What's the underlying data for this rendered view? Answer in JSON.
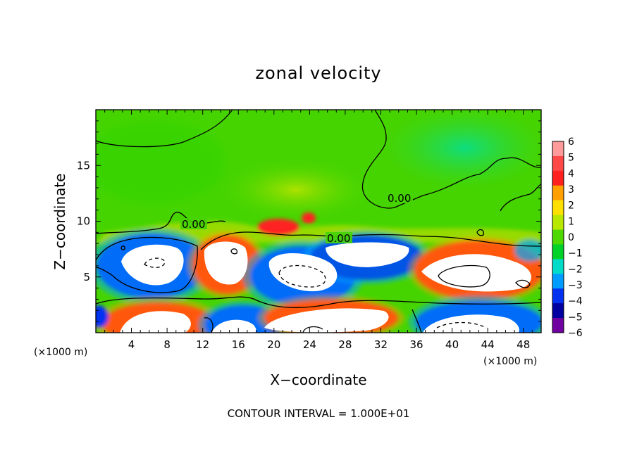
{
  "chart_data": {
    "type": "heatmap",
    "title": "zonal velocity",
    "xlabel": "X−coordinate",
    "ylabel": "Z−coordinate",
    "x_unit": "(×1000 m)",
    "y_unit": "(×1000 m)",
    "xlim": [
      0,
      50
    ],
    "ylim": [
      0,
      20
    ],
    "x_ticks": [
      "4",
      "8",
      "12",
      "16",
      "20",
      "24",
      "28",
      "32",
      "36",
      "40",
      "44",
      "48"
    ],
    "y_ticks": [
      "5",
      "10",
      "15"
    ],
    "colorbar": {
      "min": -6,
      "max": 6,
      "labels": [
        "6",
        "5",
        "4",
        "3",
        "2",
        "1",
        "0",
        "−1",
        "−2",
        "−3",
        "−4",
        "−5",
        "−6"
      ],
      "colors": [
        "#ff9a9a",
        "#ff4848",
        "#ff2020",
        "#ffa000",
        "#ffe000",
        "#b8e800",
        "#4cd800",
        "#00d22a",
        "#00dcc8",
        "#009cff",
        "#0030f0",
        "#0000a0",
        "#7000a0"
      ]
    },
    "contour_labels": [
      "0.00",
      "0.00",
      "0.00"
    ],
    "contour_interval_text": "CONTOUR INTERVAL = 1.000E+01",
    "features": [
      {
        "kind": "blob",
        "sign": "negative",
        "cx": 6.5,
        "cz": 6.0
      },
      {
        "kind": "blob",
        "sign": "positive",
        "cx": 15.0,
        "cz": 6.2
      },
      {
        "kind": "blob",
        "sign": "negative",
        "cx": 24.5,
        "cz": 5.0
      },
      {
        "kind": "blob",
        "sign": "negative",
        "cx": 31.0,
        "cz": 7.2
      },
      {
        "kind": "blob",
        "sign": "positive",
        "cx": 43.0,
        "cz": 5.5
      },
      {
        "kind": "blob",
        "sign": "positive",
        "cx": 6.0,
        "cz": 1.2
      },
      {
        "kind": "blob",
        "sign": "negative",
        "cx": 16.0,
        "cz": 0.8
      },
      {
        "kind": "blob",
        "sign": "positive",
        "cx": 25.0,
        "cz": 1.3
      },
      {
        "kind": "blob",
        "sign": "negative",
        "cx": 42.0,
        "cz": 1.2
      },
      {
        "kind": "blob",
        "sign": "positive",
        "cx": 22.5,
        "cz": 9.6
      }
    ]
  }
}
